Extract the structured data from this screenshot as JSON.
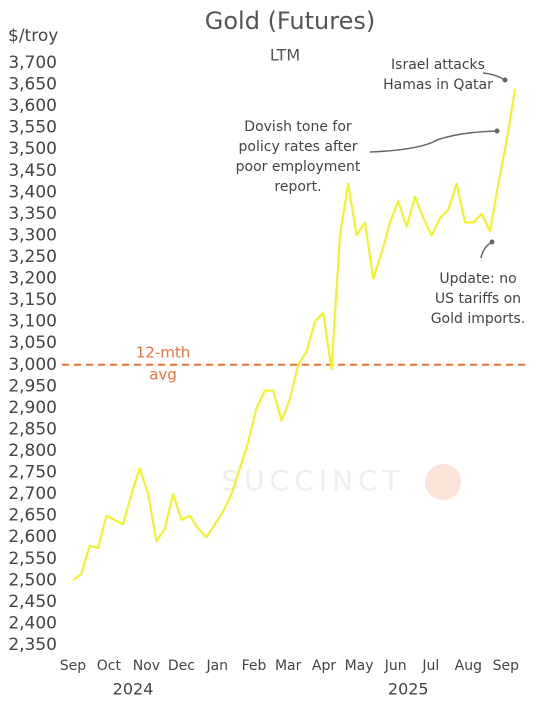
{
  "chart_data": {
    "type": "line",
    "title": "Gold (Futures)",
    "subtitle": "LTM",
    "y_axis_label": "$/troy",
    "watermark": "SUCCINCT",
    "series": [
      {
        "name": "Gold futures",
        "color": "#f2f21c",
        "values": [
          2500,
          2515,
          2580,
          2575,
          2650,
          2640,
          2630,
          2700,
          2760,
          2700,
          2590,
          2620,
          2700,
          2640,
          2650,
          2620,
          2600,
          2630,
          2660,
          2700,
          2760,
          2820,
          2900,
          2940,
          2940,
          2870,
          2920,
          3000,
          3030,
          3100,
          3120,
          2990,
          3300,
          3420,
          3300,
          3330,
          3200,
          3260,
          3330,
          3380,
          3320,
          3390,
          3340,
          3300,
          3340,
          3360,
          3420,
          3330,
          3330,
          3350,
          3310,
          3420,
          3520,
          3640
        ]
      }
    ],
    "xlim": [
      0,
      53
    ],
    "xticks": [
      {
        "value": 0,
        "label": "Sep"
      },
      {
        "value": 4.3,
        "label": "Oct"
      },
      {
        "value": 8.8,
        "label": "Nov"
      },
      {
        "value": 13,
        "label": "Dec"
      },
      {
        "value": 17.3,
        "label": "Jan"
      },
      {
        "value": 21.7,
        "label": "Feb"
      },
      {
        "value": 25.8,
        "label": "Mar"
      },
      {
        "value": 30.1,
        "label": "Apr"
      },
      {
        "value": 34.3,
        "label": "May"
      },
      {
        "value": 38.7,
        "label": "Jun"
      },
      {
        "value": 42.9,
        "label": "Jul"
      },
      {
        "value": 47.4,
        "label": "Aug"
      },
      {
        "value": 51.9,
        "label": "Sep"
      }
    ],
    "year_labels": [
      {
        "value": 7.2,
        "label": "2024"
      },
      {
        "value": 40.2,
        "label": "2025"
      }
    ],
    "ylim": [
      2350,
      3700
    ],
    "yticks": [
      {
        "value": 2350,
        "label": "2,350"
      },
      {
        "value": 2400,
        "label": "2,400"
      },
      {
        "value": 2450,
        "label": "2,450"
      },
      {
        "value": 2500,
        "label": "2,500"
      },
      {
        "value": 2550,
        "label": "2,550"
      },
      {
        "value": 2600,
        "label": "2,600"
      },
      {
        "value": 2650,
        "label": "2,650"
      },
      {
        "value": 2700,
        "label": "2,700"
      },
      {
        "value": 2750,
        "label": "2,750"
      },
      {
        "value": 2800,
        "label": "2,800"
      },
      {
        "value": 2850,
        "label": "2,850"
      },
      {
        "value": 2900,
        "label": "2,900"
      },
      {
        "value": 2950,
        "label": "2,950"
      },
      {
        "value": 3000,
        "label": "3,000"
      },
      {
        "value": 3050,
        "label": "3,050"
      },
      {
        "value": 3100,
        "label": "3,100"
      },
      {
        "value": 3150,
        "label": "3,150"
      },
      {
        "value": 3200,
        "label": "3,200"
      },
      {
        "value": 3250,
        "label": "3,250"
      },
      {
        "value": 3300,
        "label": "3,300"
      },
      {
        "value": 3350,
        "label": "3,350"
      },
      {
        "value": 3400,
        "label": "3,400"
      },
      {
        "value": 3450,
        "label": "3,450"
      },
      {
        "value": 3500,
        "label": "3,500"
      },
      {
        "value": 3550,
        "label": "3,550"
      },
      {
        "value": 3600,
        "label": "3,600"
      },
      {
        "value": 3650,
        "label": "3,650"
      },
      {
        "value": 3700,
        "label": "3,700"
      }
    ],
    "reference_line": {
      "value": 3000,
      "color": "#e8743b",
      "label": [
        "12-mth",
        "avg"
      ]
    },
    "annotations": [
      {
        "text": [
          "Israel attacks",
          "Hamas in Qatar"
        ]
      },
      {
        "text": [
          "Dovish tone for",
          "policy rates after",
          "poor employment",
          "report."
        ]
      },
      {
        "text": [
          "Update: no",
          "US tariffs on",
          "Gold imports."
        ]
      }
    ]
  }
}
